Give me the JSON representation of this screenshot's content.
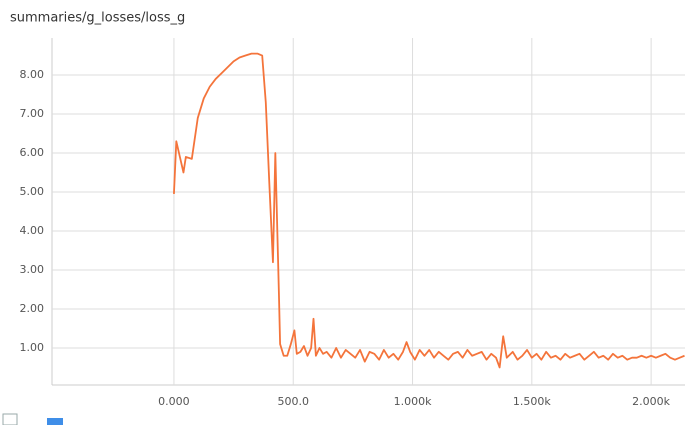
{
  "chart_data": {
    "type": "line",
    "title": "summaries/g_losses/loss_g",
    "x": [
      0,
      10,
      25,
      40,
      50,
      75,
      100,
      125,
      150,
      175,
      200,
      225,
      250,
      275,
      300,
      325,
      350,
      370,
      385,
      400,
      415,
      425,
      440,
      445,
      460,
      475,
      490,
      505,
      515,
      530,
      545,
      560,
      575,
      585,
      595,
      610,
      625,
      640,
      660,
      680,
      700,
      720,
      740,
      760,
      780,
      800,
      820,
      840,
      860,
      880,
      900,
      920,
      940,
      960,
      975,
      990,
      1010,
      1030,
      1050,
      1070,
      1090,
      1110,
      1130,
      1150,
      1170,
      1190,
      1210,
      1230,
      1250,
      1270,
      1290,
      1310,
      1330,
      1350,
      1365,
      1380,
      1395,
      1420,
      1440,
      1460,
      1480,
      1500,
      1520,
      1540,
      1560,
      1580,
      1600,
      1620,
      1640,
      1660,
      1680,
      1700,
      1720,
      1740,
      1760,
      1780,
      1800,
      1820,
      1840,
      1860,
      1880,
      1900,
      1920,
      1940,
      1960,
      1980,
      2000,
      2020,
      2040,
      2060,
      2080,
      2100,
      2120,
      2140
    ],
    "values": [
      4.95,
      6.3,
      5.9,
      5.5,
      5.9,
      5.85,
      6.9,
      7.4,
      7.7,
      7.9,
      8.05,
      8.2,
      8.35,
      8.45,
      8.5,
      8.55,
      8.55,
      8.5,
      7.3,
      5.2,
      3.2,
      6.0,
      2.4,
      1.1,
      0.8,
      0.8,
      1.1,
      1.45,
      0.85,
      0.9,
      1.05,
      0.8,
      1.0,
      1.75,
      0.8,
      1.0,
      0.85,
      0.9,
      0.75,
      1.0,
      0.75,
      0.95,
      0.85,
      0.75,
      0.95,
      0.65,
      0.9,
      0.85,
      0.7,
      0.95,
      0.75,
      0.85,
      0.7,
      0.9,
      1.15,
      0.9,
      0.7,
      0.95,
      0.8,
      0.95,
      0.75,
      0.9,
      0.8,
      0.7,
      0.85,
      0.9,
      0.75,
      0.95,
      0.8,
      0.85,
      0.9,
      0.7,
      0.85,
      0.75,
      0.5,
      1.3,
      0.75,
      0.9,
      0.7,
      0.8,
      0.95,
      0.75,
      0.85,
      0.7,
      0.9,
      0.75,
      0.8,
      0.7,
      0.85,
      0.75,
      0.8,
      0.85,
      0.7,
      0.8,
      0.9,
      0.75,
      0.8,
      0.7,
      0.85,
      0.75,
      0.8,
      0.7,
      0.75,
      0.75,
      0.8,
      0.75,
      0.8,
      0.75,
      0.8,
      0.85,
      0.75,
      0.7,
      0.75,
      0.8
    ],
    "color": "#f4743b",
    "xlim": [
      -511,
      2142
    ],
    "ylim": [
      0.05,
      8.95
    ],
    "xticks": [
      {
        "value": 0,
        "label": "0.000"
      },
      {
        "value": 500,
        "label": "500.0"
      },
      {
        "value": 1000,
        "label": "1.000k"
      },
      {
        "value": 1500,
        "label": "1.500k"
      },
      {
        "value": 2000,
        "label": "2.000k"
      }
    ],
    "yticks": [
      {
        "value": 1,
        "label": "1.00"
      },
      {
        "value": 2,
        "label": "2.00"
      },
      {
        "value": 3,
        "label": "3.00"
      },
      {
        "value": 4,
        "label": "4.00"
      },
      {
        "value": 5,
        "label": "5.00"
      },
      {
        "value": 6,
        "label": "6.00"
      },
      {
        "value": 7,
        "label": "7.00"
      },
      {
        "value": 8,
        "label": "8.00"
      }
    ],
    "grid": true
  }
}
